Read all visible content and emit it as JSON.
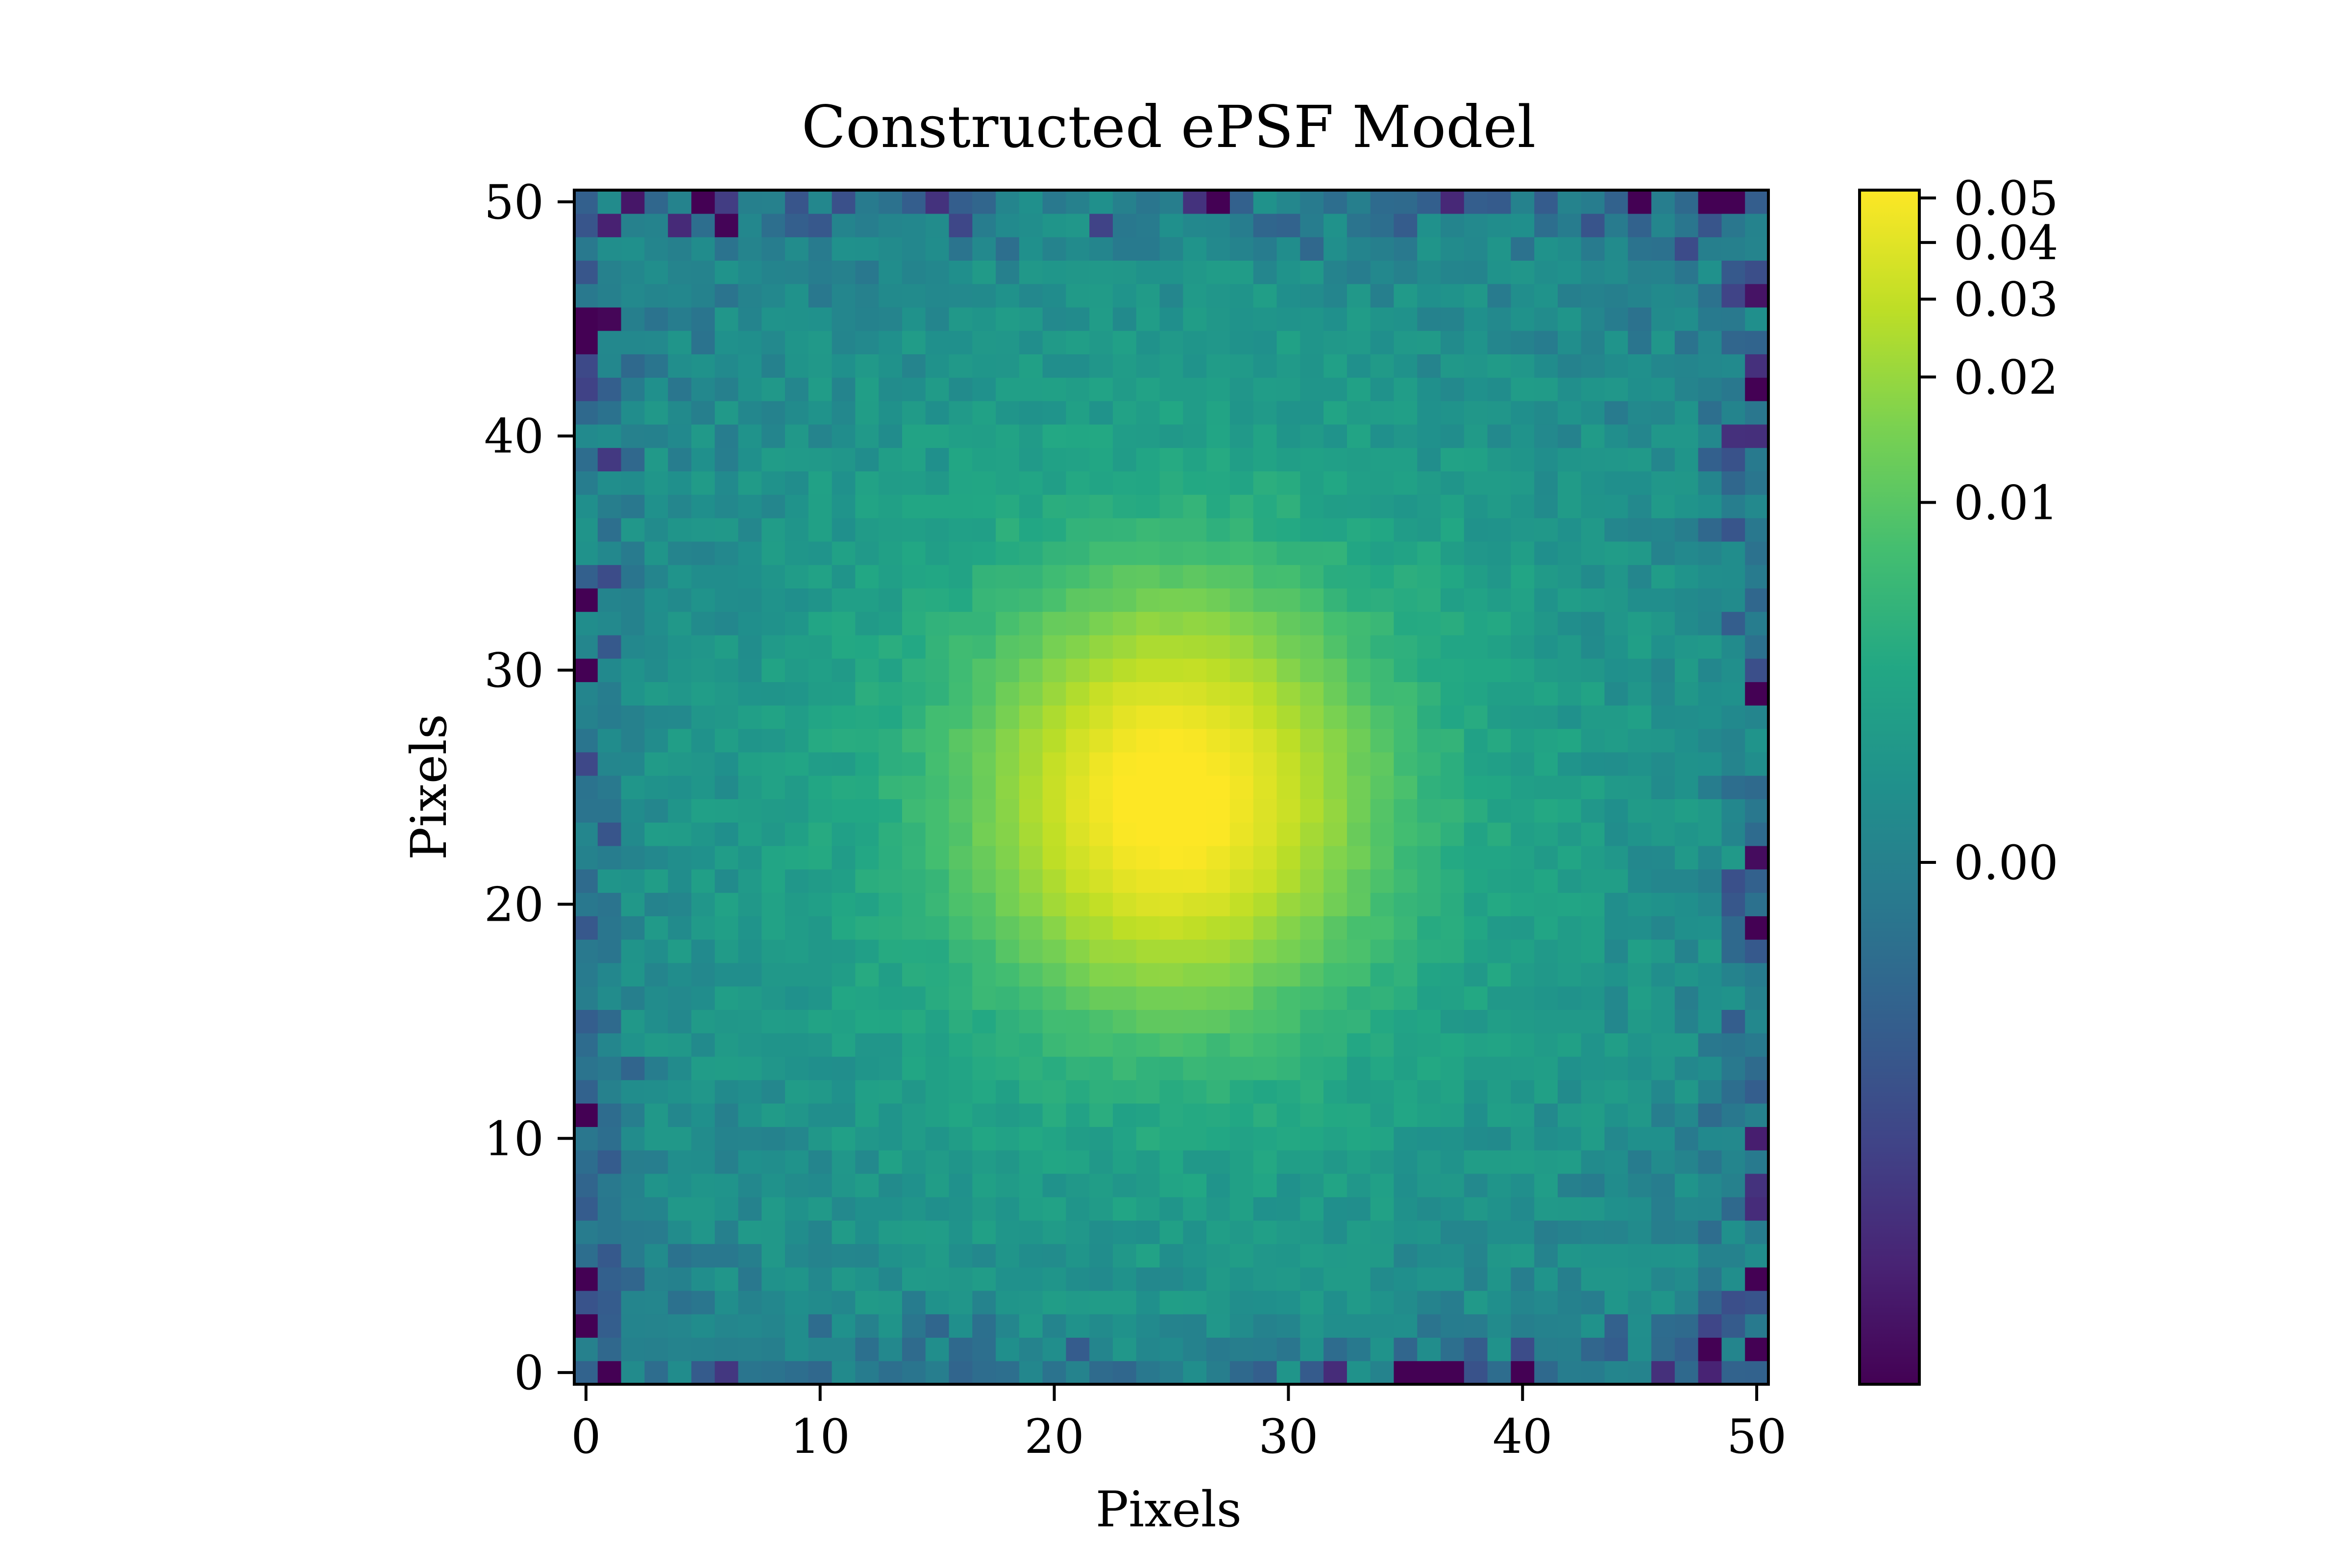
{
  "chart_data": {
    "type": "heatmap",
    "title": "Constructed ePSF Model",
    "xlabel": "Pixels",
    "ylabel": "Pixels",
    "grid_size": 51,
    "xlim": [
      -0.5,
      50.5
    ],
    "ylim": [
      -0.5,
      50.5
    ],
    "x_ticks": [
      0,
      10,
      20,
      30,
      40,
      50
    ],
    "y_ticks": [
      0,
      10,
      20,
      30,
      40,
      50
    ],
    "origin": "lower",
    "colormap": "viridis",
    "color_scale": "log-stretched",
    "vmin": -0.002,
    "vmax": 0.052,
    "peak_center": [
      25,
      24.5
    ],
    "peak_value": 0.052,
    "background_level": 0.0015,
    "colorbar": {
      "ticks": [
        0.0,
        0.01,
        0.02,
        0.03,
        0.04,
        0.05
      ],
      "tick_labels": [
        "0.00",
        "0.01",
        "0.02",
        "0.03",
        "0.04",
        "0.05"
      ]
    },
    "grid": false
  }
}
